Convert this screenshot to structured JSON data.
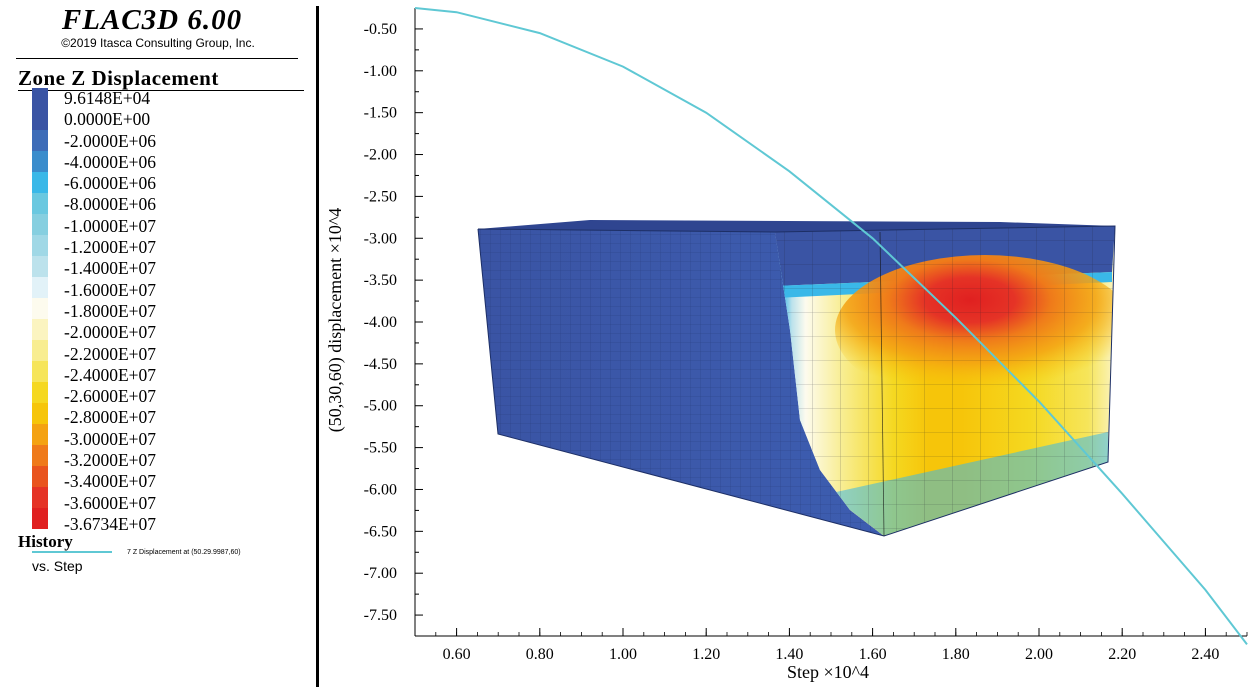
{
  "app": {
    "title": "FLAC3D 6.00",
    "copyright": "©2019 Itasca Consulting Group, Inc."
  },
  "legend": {
    "title": "Zone Z Displacement",
    "items": [
      {
        "label": "9.6148E+04",
        "color": "#3a54a4"
      },
      {
        "label": "0.0000E+00",
        "color": "#3a54a4"
      },
      {
        "label": "-2.0000E+06",
        "color": "#3d6cb8"
      },
      {
        "label": "-4.0000E+06",
        "color": "#3a8ccc"
      },
      {
        "label": "-6.0000E+06",
        "color": "#3ab8e8"
      },
      {
        "label": "-8.0000E+06",
        "color": "#6ac8e0"
      },
      {
        "label": "-1.0000E+07",
        "color": "#86cfe0"
      },
      {
        "label": "-1.2000E+07",
        "color": "#a0d8e6"
      },
      {
        "label": "-1.4000E+07",
        "color": "#bce2ec"
      },
      {
        "label": "-1.6000E+07",
        "color": "#e2f2f8"
      },
      {
        "label": "-1.8000E+07",
        "color": "#fdfbee"
      },
      {
        "label": "-2.0000E+07",
        "color": "#fbf4c0"
      },
      {
        "label": "-2.2000E+07",
        "color": "#f8ed90"
      },
      {
        "label": "-2.4000E+07",
        "color": "#f6e55a"
      },
      {
        "label": "-2.6000E+07",
        "color": "#f5d820"
      },
      {
        "label": "-2.8000E+07",
        "color": "#f6c50a"
      },
      {
        "label": "-3.0000E+07",
        "color": "#f4a212"
      },
      {
        "label": "-3.2000E+07",
        "color": "#ef7a1a"
      },
      {
        "label": "-3.4000E+07",
        "color": "#e9541e"
      },
      {
        "label": "-3.6000E+07",
        "color": "#e53326"
      },
      {
        "label": "-3.6734E+07",
        "color": "#e02020"
      }
    ]
  },
  "history": {
    "title": "History",
    "entry": "7 Z Displacement at (50.29.9987,60)",
    "vs": "vs. Step",
    "line_color": "#5fc8d4"
  },
  "chart_data": {
    "type": "line",
    "title": "",
    "xlabel": "Step ×10^4",
    "ylabel": "(50,30,60) displacement ×10^4",
    "xlim": [
      0.5,
      2.5
    ],
    "ylim": [
      -7.75,
      -0.25
    ],
    "x_ticks": [
      "0.60",
      "0.80",
      "1.00",
      "1.20",
      "1.40",
      "1.60",
      "1.80",
      "2.00",
      "2.20",
      "2.40"
    ],
    "y_ticks": [
      "-0.50",
      "-1.00",
      "-1.50",
      "-2.00",
      "-2.50",
      "-3.00",
      "-3.50",
      "-4.00",
      "-4.50",
      "-5.00",
      "-5.50",
      "-6.00",
      "-6.50",
      "-7.00",
      "-7.50"
    ],
    "series": [
      {
        "name": "7 Z Displacement at (50.29.9987,60)",
        "x": [
          0.5,
          0.6,
          0.8,
          1.0,
          1.2,
          1.4,
          1.6,
          1.8,
          2.0,
          2.2,
          2.4,
          2.5
        ],
        "y": [
          -0.25,
          -0.3,
          -0.55,
          -0.95,
          -1.5,
          -2.2,
          -3.0,
          -3.95,
          -4.95,
          -6.05,
          -7.2,
          -7.85
        ]
      }
    ]
  }
}
